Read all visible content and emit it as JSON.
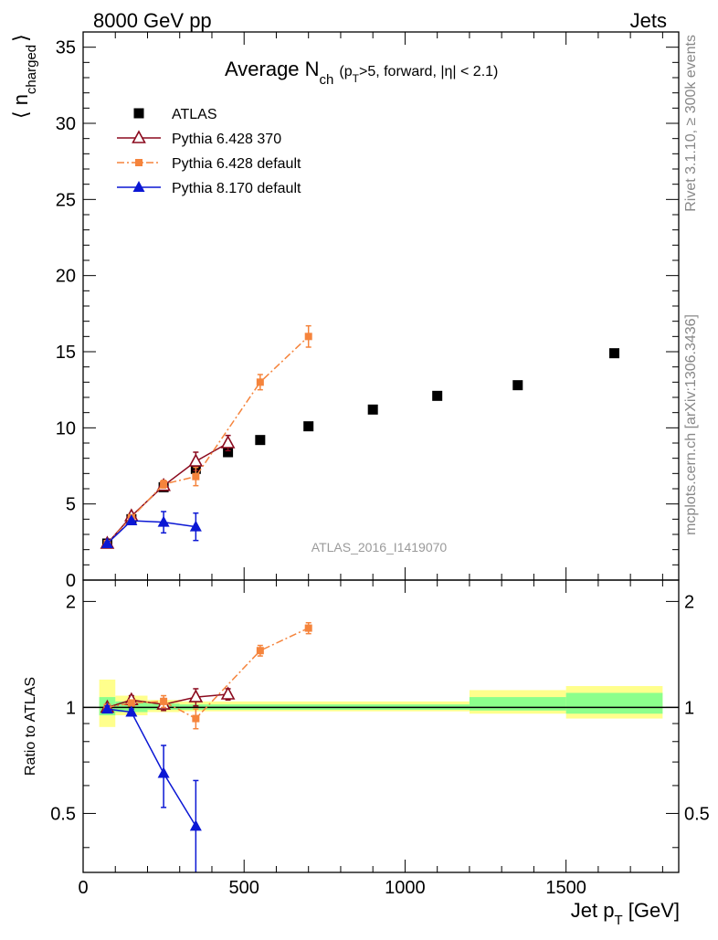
{
  "header": {
    "left": "8000 GeV pp",
    "right": "Jets"
  },
  "side_labels": {
    "rivet": "Rivet 3.1.10, ≥ 300k events",
    "mcplots": "mcplots.cern.ch [arXiv:1306.3436]"
  },
  "watermark": "ATLAS_2016_I1419070",
  "colors": {
    "atlas": "#000000",
    "py6_370": "#8b0a1e",
    "py6_default": "#f5843c",
    "py8_default": "#0b17d4",
    "band_outer": "#ffff8c",
    "band_inner": "#8cff8c"
  },
  "chart_data": [
    {
      "id": "main",
      "type": "scatter",
      "title_parts": {
        "main": "Average N",
        "sub": "ch",
        "cond_open": "(p",
        "cond_sub": "T",
        "cond_rest": ">5, forward, |η| < 2.1)"
      },
      "ylabel_parts": {
        "open": "⟨ n",
        "sub": "charged",
        "close": "⟩"
      },
      "xlim": [
        0,
        1850
      ],
      "ylim": [
        0,
        36
      ],
      "ytick_labels": [
        "0",
        "5",
        "10",
        "15",
        "20",
        "25",
        "30",
        "35"
      ],
      "ytick_values": [
        0,
        5,
        10,
        15,
        20,
        25,
        30,
        35
      ],
      "legend_position": "top-left",
      "series": [
        {
          "name": "ATLAS",
          "style": "marker",
          "marker": "square",
          "x": [
            75,
            150,
            250,
            350,
            450,
            550,
            700,
            900,
            1100,
            1350,
            1650
          ],
          "y": [
            2.4,
            4.0,
            6.1,
            7.3,
            8.4,
            9.2,
            10.1,
            11.2,
            12.1,
            12.8,
            14.9
          ],
          "err": [
            0.1,
            0.1,
            0.15,
            0.15,
            0.15,
            0.15,
            0.15,
            0.15,
            0.15,
            0.15,
            0.15
          ]
        },
        {
          "name": "Pythia 6.428 370",
          "style": "solid",
          "marker": "triangle-open",
          "x": [
            75,
            150,
            250,
            350,
            450
          ],
          "y": [
            2.4,
            4.2,
            6.2,
            7.8,
            9.0
          ],
          "err": [
            0.1,
            0.15,
            0.3,
            0.6,
            0.5
          ]
        },
        {
          "name": "Pythia 6.428 default",
          "style": "dashdot",
          "marker": "square-small",
          "x": [
            75,
            150,
            250,
            350,
            550,
            700
          ],
          "y": [
            2.4,
            4.1,
            6.3,
            6.8,
            13.0,
            16.0
          ],
          "err": [
            0.1,
            0.1,
            0.25,
            0.6,
            0.5,
            0.7
          ]
        },
        {
          "name": "Pythia 8.170 default",
          "style": "solid",
          "marker": "triangle",
          "x": [
            75,
            150,
            250,
            350
          ],
          "y": [
            2.4,
            3.9,
            3.8,
            3.5
          ],
          "err": [
            0.1,
            0.1,
            0.7,
            0.9
          ]
        }
      ]
    },
    {
      "id": "ratio",
      "type": "scatter",
      "ylabel": "Ratio to ATLAS",
      "xlabel_parts": {
        "main": "Jet p",
        "sub": "T",
        "unit": " [GeV]"
      },
      "xlim": [
        0,
        1850
      ],
      "ylim": [
        0.34,
        2.3
      ],
      "xtick_labels": [
        "0",
        "500",
        "1000",
        "1500"
      ],
      "xtick_values": [
        0,
        500,
        1000,
        1500
      ],
      "ytick_labels": [
        "0.5",
        "1",
        "2"
      ],
      "ytick_values": [
        0.5,
        1,
        2
      ],
      "bands": [
        {
          "x0": 50,
          "x1": 100,
          "outer": [
            0.88,
            1.2
          ],
          "inner": [
            0.95,
            1.07
          ]
        },
        {
          "x0": 100,
          "x1": 200,
          "outer": [
            0.95,
            1.08
          ],
          "inner": [
            0.97,
            1.04
          ]
        },
        {
          "x0": 200,
          "x1": 300,
          "outer": [
            0.97,
            1.05
          ],
          "inner": [
            0.985,
            1.025
          ]
        },
        {
          "x0": 300,
          "x1": 1200,
          "outer": [
            0.975,
            1.04
          ],
          "inner": [
            0.985,
            1.02
          ]
        },
        {
          "x0": 1200,
          "x1": 1500,
          "outer": [
            0.96,
            1.12
          ],
          "inner": [
            0.98,
            1.07
          ]
        },
        {
          "x0": 1500,
          "x1": 1800,
          "outer": [
            0.93,
            1.15
          ],
          "inner": [
            0.96,
            1.1
          ]
        }
      ],
      "series": [
        {
          "name": "Pythia 6.428 370",
          "style": "solid",
          "marker": "triangle-open",
          "x": [
            75,
            150,
            250,
            350,
            450
          ],
          "y": [
            1.0,
            1.05,
            1.02,
            1.07,
            1.09
          ],
          "err": [
            0.02,
            0.03,
            0.04,
            0.06,
            0.04
          ]
        },
        {
          "name": "Pythia 6.428 default",
          "style": "dashdot",
          "marker": "square-small",
          "x": [
            75,
            150,
            250,
            350,
            550,
            700
          ],
          "y": [
            1.0,
            1.03,
            1.04,
            0.93,
            1.45,
            1.68
          ],
          "err": [
            0.02,
            0.02,
            0.04,
            0.06,
            0.05,
            0.06
          ]
        },
        {
          "name": "Pythia 8.170 default",
          "style": "solid",
          "marker": "triangle",
          "x": [
            75,
            150,
            250,
            350
          ],
          "y": [
            0.99,
            0.97,
            0.65,
            0.46
          ],
          "err": [
            0.02,
            0.02,
            0.13,
            0.16
          ]
        }
      ]
    }
  ]
}
